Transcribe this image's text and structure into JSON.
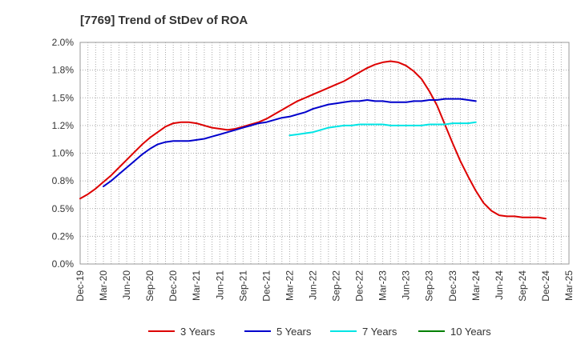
{
  "chart_data": {
    "type": "line",
    "title": "[7769]  Trend of StDev of ROA",
    "xlabel": "",
    "ylabel": "",
    "x_ticks": [
      "Dec-19",
      "Mar-20",
      "Jun-20",
      "Sep-20",
      "Dec-20",
      "Mar-21",
      "Jun-21",
      "Sep-21",
      "Dec-21",
      "Mar-22",
      "Jun-22",
      "Sep-22",
      "Dec-22",
      "Mar-23",
      "Jun-23",
      "Sep-23",
      "Dec-23",
      "Mar-24",
      "Jun-24",
      "Sep-24",
      "Dec-24",
      "Mar-25"
    ],
    "y_ticks": [
      "0.0%",
      "0.2%",
      "0.5%",
      "0.8%",
      "1.0%",
      "1.2%",
      "1.5%",
      "1.8%",
      "2.0%"
    ],
    "ylim": [
      0,
      2.0
    ],
    "grid": true,
    "legend_position": "bottom",
    "series": [
      {
        "name": "3 Years",
        "color": "#dd0000",
        "start_index": 0,
        "values": [
          0.59,
          0.63,
          0.68,
          0.74,
          0.8,
          0.87,
          0.94,
          1.01,
          1.08,
          1.14,
          1.19,
          1.24,
          1.27,
          1.28,
          1.28,
          1.27,
          1.25,
          1.23,
          1.22,
          1.21,
          1.22,
          1.24,
          1.26,
          1.28,
          1.31,
          1.35,
          1.39,
          1.43,
          1.47,
          1.5,
          1.53,
          1.56,
          1.59,
          1.62,
          1.65,
          1.69,
          1.73,
          1.77,
          1.8,
          1.82,
          1.83,
          1.82,
          1.79,
          1.74,
          1.67,
          1.56,
          1.43,
          1.26,
          1.09,
          0.93,
          0.79,
          0.66,
          0.55,
          0.48,
          0.44,
          0.43,
          0.43,
          0.42,
          0.42,
          0.42,
          0.41
        ]
      },
      {
        "name": "5 Years",
        "color": "#0000cc",
        "start_index": 3,
        "values": [
          0.7,
          0.75,
          0.81,
          0.87,
          0.93,
          0.99,
          1.04,
          1.08,
          1.1,
          1.11,
          1.11,
          1.11,
          1.12,
          1.13,
          1.15,
          1.17,
          1.19,
          1.21,
          1.23,
          1.25,
          1.27,
          1.28,
          1.3,
          1.32,
          1.33,
          1.35,
          1.37,
          1.4,
          1.42,
          1.44,
          1.45,
          1.46,
          1.47,
          1.47,
          1.48,
          1.47,
          1.47,
          1.46,
          1.46,
          1.46,
          1.47,
          1.47,
          1.48,
          1.48,
          1.49,
          1.49,
          1.49,
          1.48,
          1.47
        ]
      },
      {
        "name": "7 Years",
        "color": "#00e5e5",
        "start_index": 27,
        "values": [
          1.16,
          1.17,
          1.18,
          1.19,
          1.21,
          1.23,
          1.24,
          1.25,
          1.25,
          1.26,
          1.26,
          1.26,
          1.26,
          1.25,
          1.25,
          1.25,
          1.25,
          1.25,
          1.26,
          1.26,
          1.26,
          1.27,
          1.27,
          1.27,
          1.28
        ]
      },
      {
        "name": "10 Years",
        "color": "#008000",
        "start_index": 0,
        "values": []
      }
    ]
  }
}
